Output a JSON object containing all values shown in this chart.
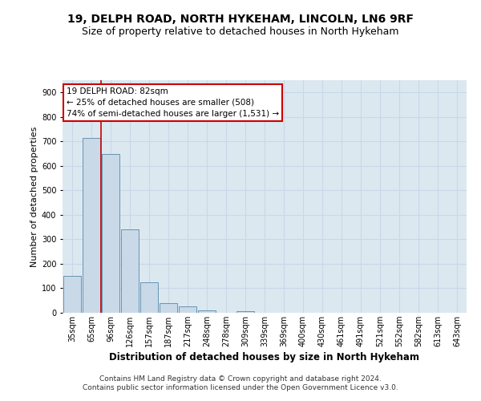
{
  "title1": "19, DELPH ROAD, NORTH HYKEHAM, LINCOLN, LN6 9RF",
  "title2": "Size of property relative to detached houses in North Hykeham",
  "xlabel": "Distribution of detached houses by size in North Hykeham",
  "ylabel": "Number of detached properties",
  "categories": [
    "35sqm",
    "65sqm",
    "96sqm",
    "126sqm",
    "157sqm",
    "187sqm",
    "217sqm",
    "248sqm",
    "278sqm",
    "309sqm",
    "339sqm",
    "369sqm",
    "400sqm",
    "430sqm",
    "461sqm",
    "491sqm",
    "521sqm",
    "552sqm",
    "582sqm",
    "613sqm",
    "643sqm"
  ],
  "values": [
    150,
    715,
    650,
    340,
    125,
    40,
    27,
    10,
    0,
    8,
    0,
    0,
    0,
    0,
    0,
    0,
    0,
    0,
    0,
    0,
    0
  ],
  "bar_color": "#c9d9e8",
  "bar_edge_color": "#5588aa",
  "vline_x": 1.5,
  "vline_color": "#cc0000",
  "annotation_text": "19 DELPH ROAD: 82sqm\n← 25% of detached houses are smaller (508)\n74% of semi-detached houses are larger (1,531) →",
  "annotation_box_color": "#ffffff",
  "annotation_box_edge_color": "#cc0000",
  "ylim": [
    0,
    950
  ],
  "yticks": [
    0,
    100,
    200,
    300,
    400,
    500,
    600,
    700,
    800,
    900
  ],
  "grid_color": "#c8d8e8",
  "bg_color": "#dce8f0",
  "footer1": "Contains HM Land Registry data © Crown copyright and database right 2024.",
  "footer2": "Contains public sector information licensed under the Open Government Licence v3.0.",
  "title1_fontsize": 10,
  "title2_fontsize": 9,
  "xlabel_fontsize": 8.5,
  "ylabel_fontsize": 8,
  "tick_fontsize": 7,
  "annotation_fontsize": 7.5,
  "footer_fontsize": 6.5
}
